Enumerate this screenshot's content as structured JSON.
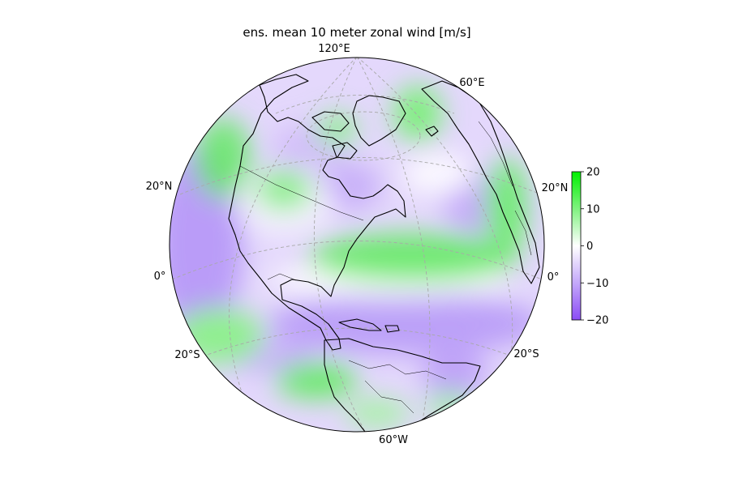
{
  "chart_data": {
    "type": "heatmap",
    "title": "ens. mean 10 meter zonal wind [m/s]",
    "projection": "orthographic",
    "coastlines": true,
    "borders": true,
    "gridlines": true,
    "gridline_labels": {
      "top": "120°E",
      "top_right": "60°E",
      "left_upper": "20°N",
      "right_upper": "20°N",
      "left_middle": "0°",
      "right_middle": "0°",
      "left_lower": "20°S",
      "right_lower": "20°S",
      "bottom": "60°W"
    },
    "colorbar": {
      "min": -20,
      "max": 20,
      "ticks": [
        "20",
        "10",
        "0",
        "−10",
        "−20"
      ],
      "colormap": [
        "#8b4cf5",
        "#ffffff",
        "#00f000"
      ],
      "placement": "right"
    }
  },
  "colors": {
    "negative": "#8b4cf5",
    "neutral": "#ffffff",
    "positive": "#1ee81e"
  }
}
